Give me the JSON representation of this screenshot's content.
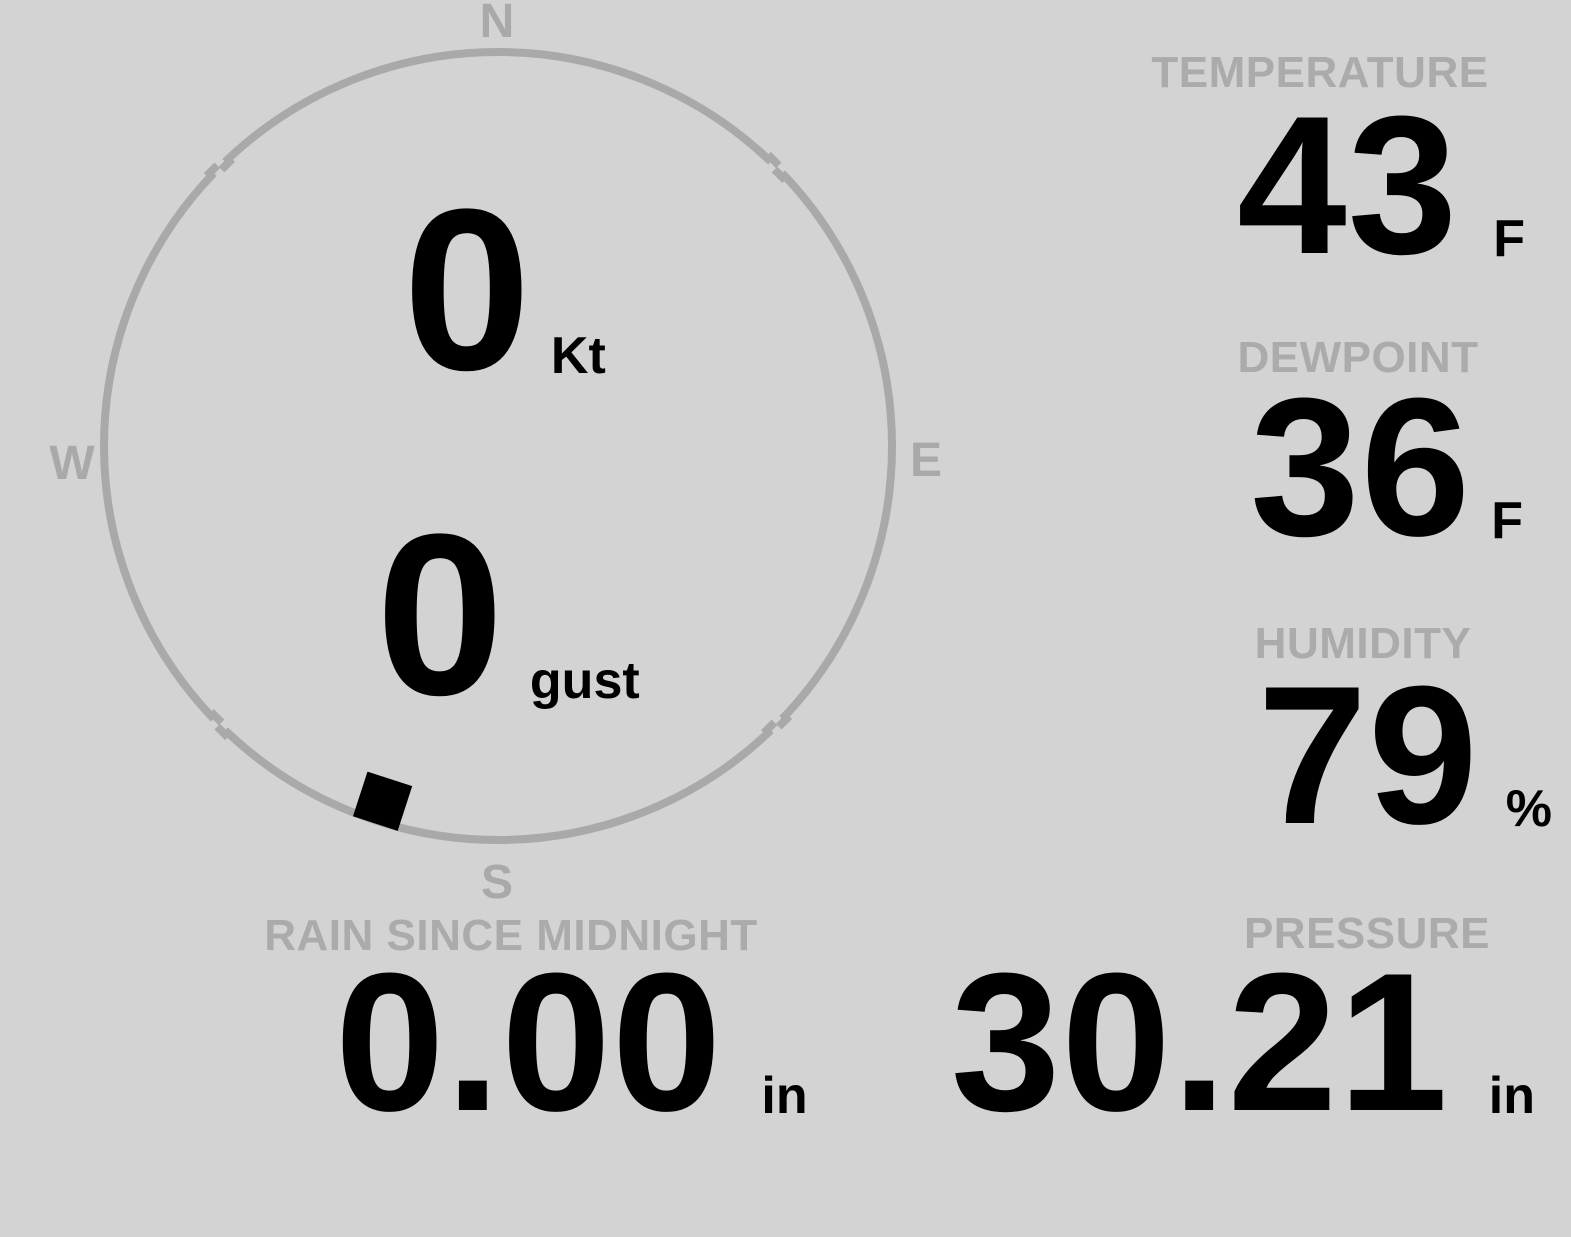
{
  "colors": {
    "background": "#d3d3d3",
    "muted_gray": "#a9a9a9",
    "label_gray": "#ababab",
    "value_black": "#000000",
    "marker_black": "#000000"
  },
  "wind": {
    "compass_points": {
      "north": "N",
      "east": "E",
      "south": "S",
      "west": "W"
    },
    "speed_value": "0",
    "speed_unit": "Kt",
    "gust_value": "0",
    "gust_label": "gust",
    "direction_marker_bearing_deg": 198
  },
  "readings": {
    "temperature": {
      "label": "TEMPERATURE",
      "value": "43",
      "unit": "F"
    },
    "dewpoint": {
      "label": "DEWPOINT",
      "value": "36",
      "unit": "F"
    },
    "humidity": {
      "label": "HUMIDITY",
      "value": "79",
      "unit": "%"
    },
    "rain_since_midnight": {
      "label": "RAIN SINCE MIDNIGHT",
      "value": "0.00",
      "unit": "in"
    },
    "pressure": {
      "label": "PRESSURE",
      "value": "30.21",
      "unit": "in"
    }
  }
}
